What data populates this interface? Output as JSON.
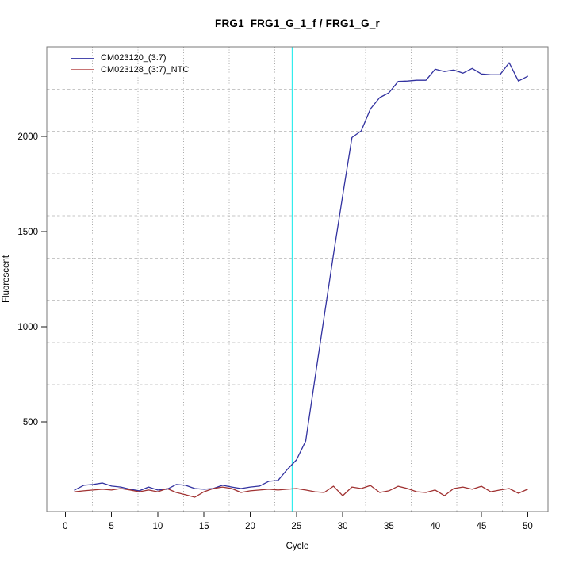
{
  "title": "FRG1  FRG1_G_1_f / FRG1_G_r",
  "axes": {
    "x_label": "Cycle",
    "y_label": "Fluorescent",
    "x_ticks": [
      0,
      5,
      10,
      15,
      20,
      25,
      30,
      35,
      40,
      45,
      50
    ],
    "y_ticks": [
      500,
      1000,
      1500,
      2000
    ]
  },
  "legend": {
    "items": [
      {
        "label": "CM023120_(3:7)",
        "swatch_color": "#4A4AAE"
      },
      {
        "label": "CM023128_(3:7)_NTC",
        "swatch_color": "#C87474"
      }
    ]
  },
  "colors": {
    "plot_border": "#7a7a7a",
    "tick": "#1a1a1a",
    "grid_vertical": "#a8a8a8",
    "grid_horizontal": "#c6c6c6",
    "threshold_line": "#33EDED"
  },
  "chart_data": {
    "type": "line",
    "title": "FRG1  FRG1_G_1_f / FRG1_G_r",
    "xlabel": "Cycle",
    "ylabel": "Fluorescent",
    "xlim": [
      -2.0,
      52.2
    ],
    "ylim": [
      29,
      2472
    ],
    "grid": {
      "style": "dotted",
      "nx": 11,
      "ny": 11
    },
    "legend_position": "top-left",
    "threshold_line": {
      "axis": "x",
      "value": 24.57,
      "color": "#33EDED"
    },
    "x": [
      1,
      2,
      3,
      4,
      5,
      6,
      7,
      8,
      9,
      10,
      11,
      12,
      13,
      14,
      15,
      16,
      17,
      18,
      19,
      20,
      21,
      22,
      23,
      24,
      25,
      26,
      27,
      28,
      29,
      30,
      31,
      32,
      33,
      34,
      35,
      36,
      37,
      38,
      39,
      40,
      41,
      42,
      43,
      44,
      45,
      46,
      47,
      48,
      49,
      50
    ],
    "series": [
      {
        "name": "CM023120_(3:7)",
        "color": "#3232A0",
        "values": [
          142,
          167,
          171,
          179,
          163,
          158,
          146,
          138,
          158,
          142,
          146,
          171,
          167,
          150,
          146,
          150,
          167,
          158,
          150,
          158,
          163,
          188,
          192,
          250,
          300,
          400,
          730,
          1055,
          1380,
          1690,
          1995,
          2030,
          2145,
          2205,
          2230,
          2290,
          2292,
          2296,
          2296,
          2354,
          2342,
          2350,
          2333,
          2358,
          2329,
          2325,
          2325,
          2388,
          2292,
          2317
        ]
      },
      {
        "name": "CM023128_(3:7)_NTC",
        "color": "#A03232",
        "values": [
          133,
          138,
          142,
          146,
          142,
          150,
          142,
          133,
          142,
          133,
          150,
          129,
          117,
          104,
          133,
          150,
          158,
          150,
          129,
          138,
          142,
          146,
          142,
          146,
          150,
          142,
          133,
          129,
          162,
          112,
          158,
          150,
          166,
          129,
          138,
          162,
          150,
          133,
          129,
          142,
          112,
          150,
          158,
          146,
          162,
          133,
          142,
          150,
          125,
          146
        ]
      }
    ]
  }
}
